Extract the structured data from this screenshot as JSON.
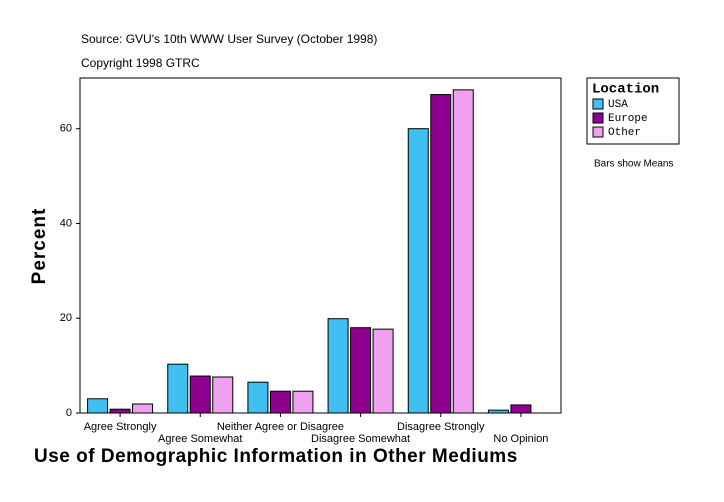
{
  "chart_data": {
    "type": "bar",
    "subtitle": "Source: GVU's 10th WWW User Survey (October 1998)",
    "copyright": "Copyright 1998 GTRC",
    "ylabel": "Percent",
    "xlabel": "Use of Demographic Information in Other Mediums",
    "legend_title": "Location",
    "note": "Bars show Means",
    "categories": [
      "Agree Strongly",
      "Agree Somewhat",
      "Neither Agree or Disagree",
      "Disagree Somewhat",
      "Disagree Strongly",
      "No Opinion"
    ],
    "series": [
      {
        "name": "USA",
        "color": "#40c0f0",
        "values": [
          3.0,
          10.3,
          6.5,
          19.9,
          60.0,
          0.6
        ]
      },
      {
        "name": "Europe",
        "color": "#900090",
        "values": [
          0.8,
          7.8,
          4.6,
          18.0,
          67.2,
          1.7
        ]
      },
      {
        "name": "Other",
        "color": "#f0a0f0",
        "values": [
          1.9,
          7.6,
          4.6,
          17.7,
          68.2,
          null
        ]
      }
    ],
    "ylim": [
      0,
      70.7
    ],
    "yticks": [
      0,
      20,
      40,
      60
    ]
  }
}
